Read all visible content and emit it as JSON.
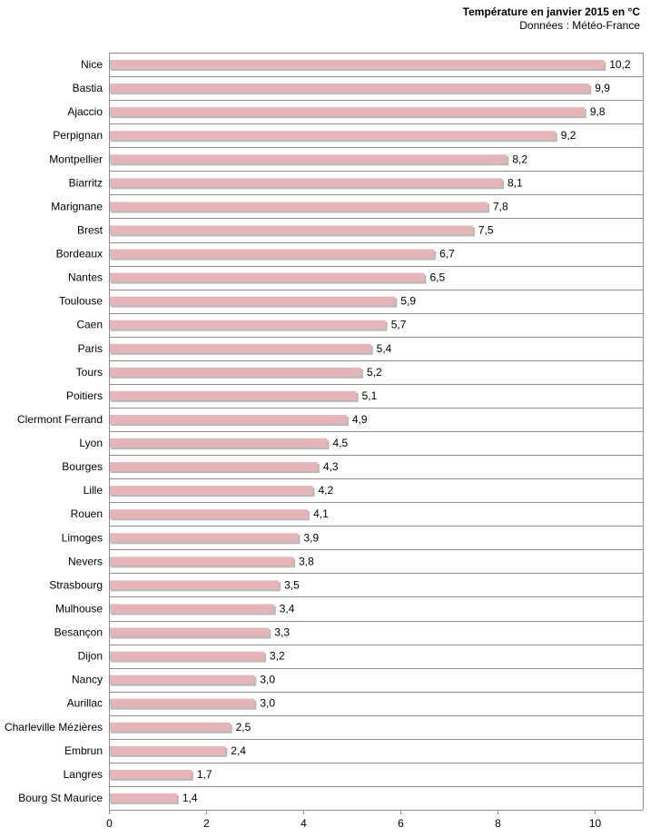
{
  "chart_data": {
    "type": "bar",
    "orientation": "horizontal",
    "title": "Température en janvier 2015 en °C",
    "subtitle": "Données : Météo-France",
    "categories": [
      "Nice",
      "Bastia",
      "Ajaccio",
      "Perpignan",
      "Montpellier",
      "Biarritz",
      "Marignane",
      "Brest",
      "Bordeaux",
      "Nantes",
      "Toulouse",
      "Caen",
      "Paris",
      "Tours",
      "Poitiers",
      "Clermont Ferrand",
      "Lyon",
      "Bourges",
      "Lille",
      "Rouen",
      "Limoges",
      "Nevers",
      "Strasbourg",
      "Mulhouse",
      "Besançon",
      "Dijon",
      "Nancy",
      "Aurillac",
      "Charleville Mézières",
      "Embrun",
      "Langres",
      "Bourg St Maurice"
    ],
    "values": [
      10.2,
      9.9,
      9.8,
      9.2,
      8.2,
      8.1,
      7.8,
      7.5,
      6.7,
      6.5,
      5.9,
      5.7,
      5.4,
      5.2,
      5.1,
      4.9,
      4.5,
      4.3,
      4.2,
      4.1,
      3.9,
      3.8,
      3.5,
      3.4,
      3.3,
      3.2,
      3.0,
      3.0,
      2.5,
      2.4,
      1.7,
      1.4
    ],
    "value_labels": [
      "10,2",
      "9,9",
      "9,8",
      "9,2",
      "8,2",
      "8,1",
      "7,8",
      "7,5",
      "6,7",
      "6,5",
      "5,9",
      "5,7",
      "5,4",
      "5,2",
      "5,1",
      "4,9",
      "4,5",
      "4,3",
      "4,2",
      "4,1",
      "3,9",
      "3,8",
      "3,5",
      "3,4",
      "3,3",
      "3,2",
      "3,0",
      "3,0",
      "2,5",
      "2,4",
      "1,7",
      "1,4"
    ],
    "xticks": [
      0,
      2,
      4,
      6,
      8,
      10
    ],
    "xlim": [
      0,
      11
    ],
    "xlabel": "",
    "ylabel": "",
    "grid": "horizontal separators between categories",
    "bar_color": "#e5b5b7",
    "bar_shadow_color": "#b9b9b9",
    "axis_color": "#8c8c8c"
  }
}
